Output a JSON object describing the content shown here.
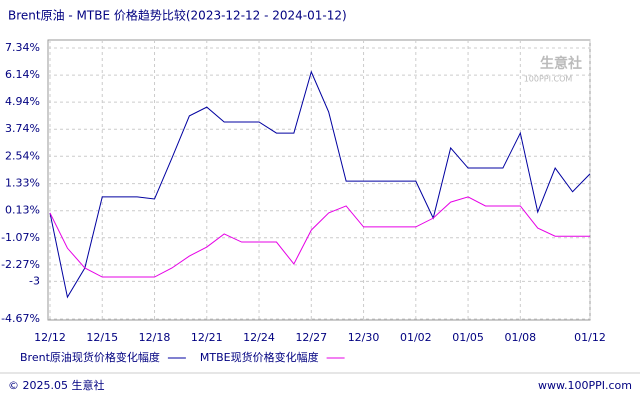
{
  "chart_data": {
    "type": "line",
    "title": "Brent原油 - MTBE 价格趋势比较(2023-12-12 - 2024-01-12)",
    "categories": [
      "12/12",
      null,
      null,
      "12/15",
      null,
      null,
      "12/18",
      null,
      null,
      "12/21",
      null,
      null,
      "12/24",
      null,
      null,
      "12/27",
      null,
      null,
      "12/30",
      null,
      null,
      "01/02",
      null,
      null,
      "01/05",
      null,
      null,
      "01/08",
      null,
      null,
      null,
      "01/12"
    ],
    "series": [
      {
        "name": "Brent原油现货价格变化幅度",
        "color": "#0000a0",
        "values": [
          0.03,
          -3.7,
          -2.41,
          0.74,
          0.74,
          0.74,
          0.65,
          2.46,
          4.33,
          4.72,
          4.06,
          4.06,
          4.06,
          3.57,
          3.57,
          6.28,
          4.5,
          1.44,
          1.44,
          1.44,
          1.44,
          1.44,
          -0.2,
          2.91,
          2.02,
          2.02,
          2.02,
          3.57,
          0.07,
          2.02,
          0.97,
          1.76
        ]
      },
      {
        "name": "MTBE现货价格变化幅度",
        "color": "#e600e6",
        "values": [
          0.03,
          -1.53,
          -2.41,
          -2.81,
          -2.81,
          -2.81,
          -2.81,
          -2.41,
          -1.88,
          -1.48,
          -0.9,
          -1.26,
          -1.26,
          -1.26,
          -2.23,
          -0.73,
          0.03,
          0.34,
          -0.59,
          -0.59,
          -0.59,
          -0.59,
          -0.2,
          0.51,
          0.74,
          0.34,
          0.34,
          0.34,
          -0.64,
          -1.0,
          -1.0,
          -1.0
        ]
      }
    ],
    "ylim": [
      -4.67,
      7.34
    ],
    "yticks": [
      {
        "value": 7.34,
        "label": "7.34%"
      },
      {
        "value": 6.14,
        "label": "6.14%"
      },
      {
        "value": 4.94,
        "label": "4.94%"
      },
      {
        "value": 3.74,
        "label": "3.74%"
      },
      {
        "value": 2.54,
        "label": "2.54%"
      },
      {
        "value": 1.33,
        "label": "1.33%"
      },
      {
        "value": 0.13,
        "label": "0.13%"
      },
      {
        "value": -1.07,
        "label": "-1.07%"
      },
      {
        "value": -2.27,
        "label": "-2.27%"
      },
      -3,
      {
        "value": -4.67,
        "label": "-4.67%"
      }
    ],
    "grid": true
  },
  "watermark": {
    "name": "生意社",
    "url": "100PPI.COM"
  },
  "footer": {
    "left": "© 2025.05 生意社",
    "right": "www.100PPI.com"
  }
}
